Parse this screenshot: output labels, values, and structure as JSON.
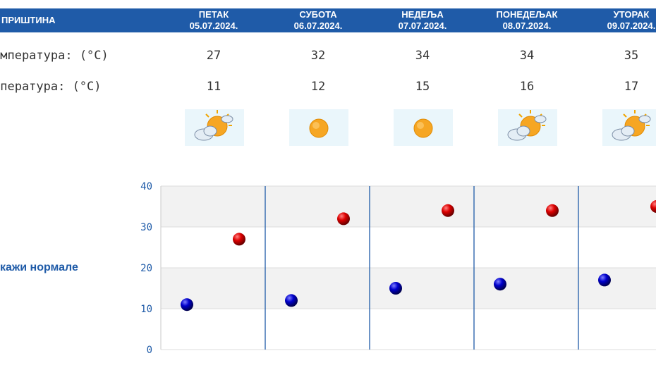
{
  "header": {
    "city": "ПРИШТИНА"
  },
  "days": [
    {
      "name": "ПЕТАК",
      "date": "05.07.2024.",
      "max": "27",
      "min": "11",
      "icon": "sun-cloud-icon"
    },
    {
      "name": "СУБОТА",
      "date": "06.07.2024.",
      "max": "32",
      "min": "12",
      "icon": "sun-icon"
    },
    {
      "name": "НЕДЕЉА",
      "date": "07.07.2024.",
      "max": "34",
      "min": "15",
      "icon": "sun-icon"
    },
    {
      "name": "ПОНЕДЕЉАК",
      "date": "08.07.2024.",
      "max": "34",
      "min": "16",
      "icon": "sun-cloud-icon"
    },
    {
      "name": "УТОРАК",
      "date": "09.07.2024.",
      "max": "35",
      "min": "17",
      "icon": "sun-cloud-icon"
    }
  ],
  "rows": {
    "max_label": "емпература: (°C)",
    "min_label": "мпература: (°C)"
  },
  "toggle": {
    "normals_label": "кажи нормале"
  },
  "colors": {
    "header_bg": "#1f5ba8",
    "max_marker": "#cc0000",
    "min_marker": "#0000b3",
    "divider": "#1f5ba8"
  },
  "chart_data": {
    "type": "scatter",
    "categories": [
      "05.07.2024.",
      "06.07.2024.",
      "07.07.2024.",
      "08.07.2024.",
      "09.07.2024."
    ],
    "series": [
      {
        "values": [
          11,
          12,
          15,
          16,
          17
        ],
        "color": "#0000b3"
      },
      {
        "values": [
          27,
          32,
          34,
          34,
          35
        ],
        "color": "#cc0000"
      }
    ],
    "yticks": [
      "0",
      "10",
      "20",
      "30",
      "40"
    ],
    "ylim": [
      0,
      40
    ],
    "grid": true
  }
}
